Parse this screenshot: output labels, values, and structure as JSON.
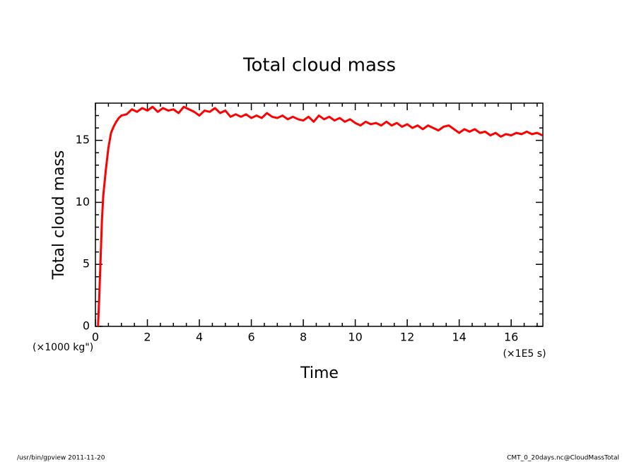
{
  "chart_data": {
    "type": "line",
    "title": "Total cloud mass",
    "x_label": "Time",
    "y_label": "Total cloud mass",
    "x_units": "(×1E5 s)",
    "y_units": "(×1000 kg\")",
    "footer_left": "/usr/bin/gpview  2011-11-20",
    "footer_right": "CMT_0_20days.nc@CloudMassTotal",
    "xlim": [
      0,
      17.22
    ],
    "ylim": [
      0,
      18
    ],
    "xticks": [
      0,
      2,
      4,
      6,
      8,
      10,
      12,
      14,
      16
    ],
    "yticks": [
      0,
      5,
      10,
      15
    ],
    "xminorticks": [
      0.5,
      1,
      1.5,
      2.5,
      3,
      3.5,
      4.5,
      5,
      5.5,
      6.5,
      7,
      7.5,
      8.5,
      9,
      9.5,
      10.5,
      11,
      11.5,
      12.5,
      13,
      13.5,
      14.5,
      15,
      15.5,
      16.5,
      17
    ],
    "yminorticks": [
      1,
      2,
      3,
      4,
      6,
      7,
      8,
      9,
      11,
      12,
      13,
      14,
      16,
      17
    ],
    "series": [
      {
        "color": "#ff0000",
        "x": [
          0.1,
          0.15,
          0.2,
          0.25,
          0.3,
          0.4,
          0.5,
          0.6,
          0.7,
          0.8,
          0.9,
          1.0,
          1.2,
          1.4,
          1.6,
          1.8,
          2.0,
          2.2,
          2.4,
          2.6,
          2.8,
          3.0,
          3.2,
          3.4,
          3.6,
          3.8,
          4.0,
          4.2,
          4.4,
          4.6,
          4.8,
          5.0,
          5.2,
          5.4,
          5.6,
          5.8,
          6.0,
          6.2,
          6.4,
          6.6,
          6.8,
          7.0,
          7.2,
          7.4,
          7.6,
          7.8,
          8.0,
          8.2,
          8.4,
          8.6,
          8.8,
          9.0,
          9.2,
          9.4,
          9.6,
          9.8,
          10.0,
          10.2,
          10.4,
          10.6,
          10.8,
          11.0,
          11.2,
          11.4,
          11.6,
          11.8,
          12.0,
          12.2,
          12.4,
          12.6,
          12.8,
          13.0,
          13.2,
          13.4,
          13.6,
          13.8,
          14.0,
          14.2,
          14.4,
          14.6,
          14.8,
          15.0,
          15.2,
          15.4,
          15.6,
          15.8,
          16.0,
          16.2,
          16.4,
          16.6,
          16.8,
          17.0,
          17.2
        ],
        "values": [
          0,
          2.5,
          5.5,
          8.5,
          10.5,
          12.6,
          14.4,
          15.6,
          16.1,
          16.5,
          16.8,
          17.0,
          17.1,
          17.5,
          17.3,
          17.6,
          17.4,
          17.7,
          17.3,
          17.6,
          17.4,
          17.5,
          17.2,
          17.7,
          17.5,
          17.3,
          17.0,
          17.4,
          17.3,
          17.6,
          17.2,
          17.4,
          16.9,
          17.1,
          16.9,
          17.1,
          16.8,
          17.0,
          16.8,
          17.2,
          16.9,
          16.8,
          17.0,
          16.7,
          16.9,
          16.7,
          16.6,
          16.9,
          16.5,
          17.0,
          16.7,
          16.9,
          16.6,
          16.8,
          16.5,
          16.7,
          16.4,
          16.2,
          16.5,
          16.3,
          16.4,
          16.2,
          16.5,
          16.2,
          16.4,
          16.1,
          16.3,
          16.0,
          16.2,
          15.9,
          16.2,
          16.0,
          15.8,
          16.1,
          16.2,
          15.9,
          15.6,
          15.9,
          15.7,
          15.9,
          15.6,
          15.7,
          15.4,
          15.6,
          15.3,
          15.5,
          15.4,
          15.6,
          15.5,
          15.7,
          15.5,
          15.6,
          15.4
        ]
      }
    ]
  }
}
